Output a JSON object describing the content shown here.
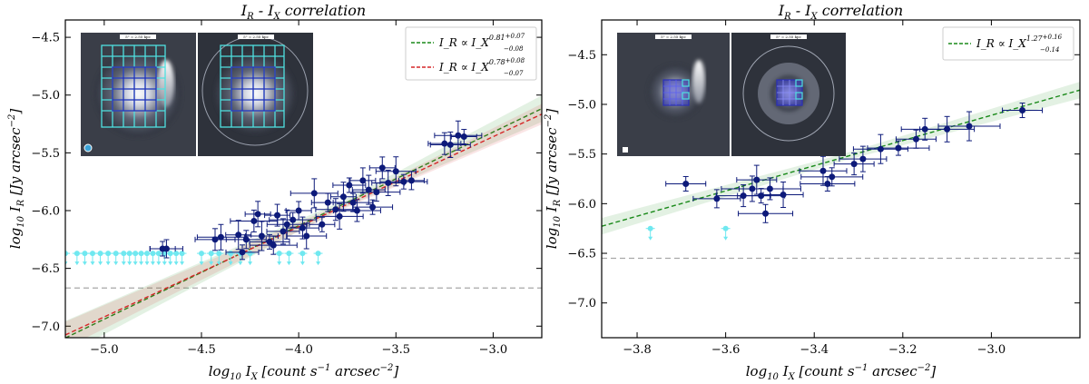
{
  "chart_data": [
    {
      "type": "scatter",
      "title": "I_R - I_X correlation",
      "xlabel": "log10 I_X [count s^-1 arcsec^-2]",
      "ylabel": "log10 I_R [Jy arcsec^-2]",
      "xlim": [
        -5.2,
        -2.75
      ],
      "ylim": [
        -7.1,
        -4.35
      ],
      "xticks": [
        -5.0,
        -4.5,
        -4.0,
        -3.5,
        -3.0
      ],
      "yticks": [
        -7.0,
        -6.5,
        -6.0,
        -5.5,
        -5.0,
        -4.5
      ],
      "xtick_labels": [
        "−5.0",
        "−4.5",
        "−4.0",
        "−3.5",
        "−3.0"
      ],
      "ytick_labels": [
        "−7.0",
        "−6.5",
        "−6.0",
        "−5.5",
        "−5.0",
        "−4.5"
      ],
      "threshold_y": -6.67,
      "fits": [
        {
          "name": "green-fit",
          "color": "#1a8a1a",
          "slope": 0.81,
          "intercept": -2.89,
          "band": 0.09,
          "legend_main": "I_R ∝ I_X",
          "legend_exp": "0.81",
          "legend_plus": "+0.07",
          "legend_minus": "−0.08"
        },
        {
          "name": "red-fit",
          "color": "#d62728",
          "slope": 0.78,
          "intercept": -3.02,
          "band": 0.07,
          "legend_main": "I_R ∝ I_X",
          "legend_exp": "0.78",
          "legend_plus": "+0.08",
          "legend_minus": "−0.07"
        }
      ],
      "detections": [
        [
          -4.7,
          -6.33
        ],
        [
          -4.68,
          -6.33
        ],
        [
          -4.43,
          -6.25
        ],
        [
          -4.4,
          -6.23
        ],
        [
          -4.31,
          -6.21
        ],
        [
          -4.29,
          -6.36
        ],
        [
          -4.27,
          -6.25
        ],
        [
          -4.23,
          -6.09
        ],
        [
          -4.21,
          -6.03
        ],
        [
          -4.19,
          -6.22
        ],
        [
          -4.15,
          -6.27
        ],
        [
          -4.13,
          -6.3
        ],
        [
          -4.11,
          -6.04
        ],
        [
          -4.08,
          -6.18
        ],
        [
          -4.06,
          -6.12
        ],
        [
          -4.03,
          -6.08
        ],
        [
          -4.0,
          -6.0
        ],
        [
          -3.98,
          -6.15
        ],
        [
          -3.96,
          -6.22
        ],
        [
          -3.92,
          -5.85
        ],
        [
          -3.88,
          -6.12
        ],
        [
          -3.85,
          -5.93
        ],
        [
          -3.81,
          -5.99
        ],
        [
          -3.79,
          -6.05
        ],
        [
          -3.77,
          -5.88
        ],
        [
          -3.74,
          -5.78
        ],
        [
          -3.72,
          -5.93
        ],
        [
          -3.7,
          -6.0
        ],
        [
          -3.67,
          -5.74
        ],
        [
          -3.64,
          -5.82
        ],
        [
          -3.62,
          -5.97
        ],
        [
          -3.6,
          -5.84
        ],
        [
          -3.57,
          -5.63
        ],
        [
          -3.54,
          -5.76
        ],
        [
          -3.5,
          -5.66
        ],
        [
          -3.46,
          -5.75
        ],
        [
          -3.42,
          -5.74
        ],
        [
          -3.25,
          -5.42
        ],
        [
          -3.22,
          -5.43
        ],
        [
          -3.18,
          -5.35
        ],
        [
          -3.15,
          -5.36
        ]
      ],
      "upper_limits": [
        [
          -5.2,
          -6.37
        ],
        [
          -5.14,
          -6.37
        ],
        [
          -5.1,
          -6.37
        ],
        [
          -5.06,
          -6.37
        ],
        [
          -5.02,
          -6.37
        ],
        [
          -4.98,
          -6.37
        ],
        [
          -4.94,
          -6.37
        ],
        [
          -4.9,
          -6.37
        ],
        [
          -4.87,
          -6.37
        ],
        [
          -4.84,
          -6.37
        ],
        [
          -4.81,
          -6.37
        ],
        [
          -4.78,
          -6.37
        ],
        [
          -4.75,
          -6.37
        ],
        [
          -4.72,
          -6.37
        ],
        [
          -4.69,
          -6.37
        ],
        [
          -4.66,
          -6.37
        ],
        [
          -4.63,
          -6.37
        ],
        [
          -4.6,
          -6.37
        ],
        [
          -4.5,
          -6.37
        ],
        [
          -4.45,
          -6.37
        ],
        [
          -4.41,
          -6.37
        ],
        [
          -4.35,
          -6.37
        ],
        [
          -4.3,
          -6.37
        ],
        [
          -4.25,
          -6.37
        ],
        [
          -4.1,
          -6.37
        ],
        [
          -4.05,
          -6.37
        ],
        [
          -3.98,
          -6.37
        ],
        [
          -3.9,
          -6.37
        ]
      ],
      "inset_labels": [
        "5\" = 2.55 kpc",
        "5\" = 2.55 kpc"
      ]
    },
    {
      "type": "scatter",
      "title": "I_R - I_X correlation",
      "xlabel": "log10 I_X [count s^-1 arcsec^-2]",
      "ylabel": "log10 I_R [Jy arcsec^-2]",
      "xlim": [
        -3.88,
        -2.8
      ],
      "ylim": [
        -7.35,
        -4.15
      ],
      "xticks": [
        -3.8,
        -3.6,
        -3.4,
        -3.2,
        -3.0
      ],
      "yticks": [
        -7.0,
        -6.5,
        -6.0,
        -5.5,
        -5.0,
        -4.5
      ],
      "xtick_labels": [
        "−3.8",
        "−3.6",
        "−3.4",
        "−3.2",
        "−3.0"
      ],
      "ytick_labels": [
        "−7.0",
        "−6.5",
        "−6.0",
        "−5.5",
        "−5.0",
        "−4.5"
      ],
      "threshold_y": -6.55,
      "fits": [
        {
          "name": "green-fit",
          "color": "#1a8a1a",
          "slope": 1.27,
          "intercept": -1.3,
          "band": 0.1,
          "legend_main": "I_R ∝ I_X",
          "legend_exp": "1.27",
          "legend_plus": "+0.16",
          "legend_minus": "−0.14"
        }
      ],
      "detections": [
        [
          -3.69,
          -5.8
        ],
        [
          -3.62,
          -5.95
        ],
        [
          -3.56,
          -5.92
        ],
        [
          -3.54,
          -5.85
        ],
        [
          -3.53,
          -5.76
        ],
        [
          -3.52,
          -5.92
        ],
        [
          -3.51,
          -6.1
        ],
        [
          -3.5,
          -5.85
        ],
        [
          -3.47,
          -5.91
        ],
        [
          -3.38,
          -5.67
        ],
        [
          -3.37,
          -5.8
        ],
        [
          -3.36,
          -5.73
        ],
        [
          -3.31,
          -5.6
        ],
        [
          -3.29,
          -5.55
        ],
        [
          -3.25,
          -5.45
        ],
        [
          -3.21,
          -5.44
        ],
        [
          -3.17,
          -5.35
        ],
        [
          -3.15,
          -5.25
        ],
        [
          -3.1,
          -5.25
        ],
        [
          -3.05,
          -5.22
        ],
        [
          -2.93,
          -5.06
        ]
      ],
      "upper_limits": [
        [
          -3.77,
          -6.25
        ],
        [
          -3.6,
          -6.25
        ]
      ],
      "inset_labels": [
        "5\" = 2.55 kpc",
        "5\" = 2.55 kpc"
      ]
    }
  ]
}
